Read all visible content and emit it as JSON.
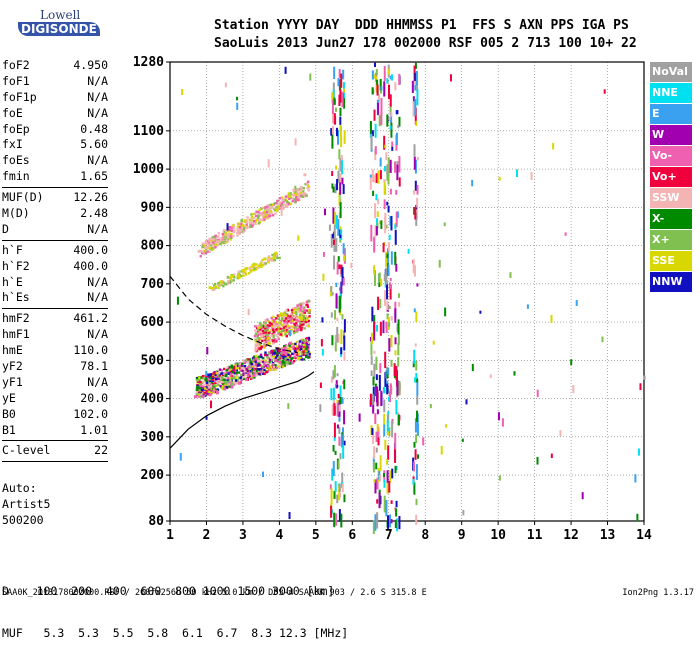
{
  "logo": {
    "line1": "Lowell",
    "line2": "DIGISONDE"
  },
  "header": {
    "line1": "Station YYYY DAY  DDD HHMMSS P1  FFS S AXN PPS IGA PS",
    "line2": "SaoLuis 2013 Jun27 178 002000 RSF 005 2 713 100 10+ 22"
  },
  "params": [
    {
      "name": "foF2",
      "value": "4.950"
    },
    {
      "name": "foF1",
      "value": "N/A"
    },
    {
      "name": "foF1p",
      "value": "N/A"
    },
    {
      "name": "foE",
      "value": "N/A"
    },
    {
      "name": "foEp",
      "value": "0.48"
    },
    {
      "name": "fxI",
      "value": "5.60"
    },
    {
      "name": "foEs",
      "value": "N/A"
    },
    {
      "name": "fmin",
      "value": "1.65"
    },
    {
      "sep": true
    },
    {
      "name": "MUF(D)",
      "value": "12.26"
    },
    {
      "name": "M(D)",
      "value": "2.48"
    },
    {
      "name": "D",
      "value": "N/A"
    },
    {
      "sep": true
    },
    {
      "name": "h`F",
      "value": "400.0"
    },
    {
      "name": "h`F2",
      "value": "400.0"
    },
    {
      "name": "h`E",
      "value": "N/A"
    },
    {
      "name": "h`Es",
      "value": "N/A"
    },
    {
      "sep": true
    },
    {
      "name": "hmF2",
      "value": "461.2"
    },
    {
      "name": "hmF1",
      "value": "N/A"
    },
    {
      "name": "hmE",
      "value": "110.0"
    },
    {
      "name": "yF2",
      "value": "78.1"
    },
    {
      "name": "yF1",
      "value": "N/A"
    },
    {
      "name": "yE",
      "value": "20.0"
    },
    {
      "name": "B0",
      "value": "102.0"
    },
    {
      "name": "B1",
      "value": "1.01"
    },
    {
      "sep": true
    },
    {
      "name": "C-level",
      "value": "22"
    },
    {
      "sep": true
    }
  ],
  "auto": {
    "line1": "Auto:",
    "line2": "Artist5",
    "line3": "500200"
  },
  "legend": [
    {
      "label": "NoVal",
      "color": "#a0a0a0"
    },
    {
      "label": "NNE",
      "color": "#00e0f0"
    },
    {
      "label": "E",
      "color": "#3aa0f0"
    },
    {
      "label": "W",
      "color": "#a000b0"
    },
    {
      "label": "Vo-",
      "color": "#f060b0"
    },
    {
      "label": "Vo+",
      "color": "#f0003c"
    },
    {
      "label": "SSW",
      "color": "#f4b4b4"
    },
    {
      "label": "X-",
      "color": "#008a00"
    },
    {
      "label": "X+",
      "color": "#80c050"
    },
    {
      "label": "SSE",
      "color": "#d8d800"
    },
    {
      "label": "NNW",
      "color": "#1010c0"
    }
  ],
  "bottom": {
    "line1": "D    100  200  400  600  800 1000 1500 3000 [km]",
    "line2": "MUF   5.3  5.3  5.5  5.8  6.1  6.7  8.3 12.3 [MHz]"
  },
  "footer": {
    "left": "SAA0K_2013178002000.RSF / 260fx256h 50 kHz 5.0 km / DPS-4 SAA0K 903 / 2.6 S 315.8 E",
    "right": "Ion2Png 1.3.17"
  },
  "chart_data": {
    "type": "scatter",
    "title": "",
    "xlabel": "",
    "ylabel": "",
    "xlim": [
      1,
      14
    ],
    "ylim": [
      80,
      1280
    ],
    "x_ticks": [
      1,
      2,
      3,
      4,
      5,
      6,
      7,
      8,
      9,
      10,
      11,
      12,
      13,
      14
    ],
    "y_ticks": [
      80,
      200,
      300,
      400,
      500,
      600,
      700,
      800,
      900,
      1000,
      1100,
      1280
    ],
    "grid": true,
    "series": [
      {
        "name": "Vo-",
        "role": "F2-trace",
        "x": [
          1.7,
          1.9,
          2.1,
          2.3,
          2.5,
          2.7,
          2.9,
          3.1,
          3.3,
          3.5,
          3.7,
          3.9,
          4.1,
          4.3,
          4.5,
          4.7
        ],
        "y": [
          405,
          405,
          410,
          415,
          425,
          430,
          440,
          450,
          460,
          470,
          485,
          500,
          520,
          545,
          580,
          630
        ]
      },
      {
        "name": "SSW",
        "role": "second-hop",
        "x": [
          1.8,
          2.0,
          2.3,
          2.6,
          2.9,
          3.2,
          3.5,
          3.8,
          4.1,
          4.4,
          4.7
        ],
        "y": [
          785,
          795,
          810,
          825,
          840,
          860,
          880,
          900,
          920,
          945,
          985
        ]
      },
      {
        "name": "SSE",
        "role": "second-hop-lower",
        "x": [
          2.1,
          2.4,
          2.7,
          3.0,
          3.3,
          3.6,
          3.9
        ],
        "y": [
          690,
          705,
          720,
          735,
          750,
          765,
          780
        ]
      },
      {
        "name": "profile",
        "role": "solid-curve",
        "x": [
          1.0,
          1.5,
          2.0,
          2.5,
          3.0,
          3.5,
          4.0,
          4.5,
          4.8,
          4.95
        ],
        "y": [
          270,
          320,
          355,
          380,
          400,
          415,
          430,
          445,
          460,
          470
        ]
      },
      {
        "name": "model",
        "role": "dashed-curve",
        "x": [
          1.0,
          1.5,
          2.0,
          2.5,
          3.0,
          3.5,
          4.0,
          4.5
        ],
        "y": [
          720,
          660,
          620,
          590,
          565,
          545,
          530,
          520
        ]
      }
    ]
  }
}
